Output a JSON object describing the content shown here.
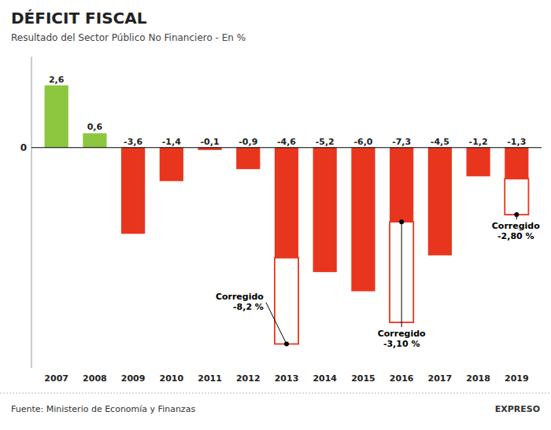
{
  "chart_data": {
    "type": "bar",
    "title": "DÉFICIT FISCAL",
    "subtitle": "Resultado del Sector Público No Financiero - En %",
    "categories": [
      "2007",
      "2008",
      "2009",
      "2010",
      "2011",
      "2012",
      "2013",
      "2014",
      "2015",
      "2016",
      "2017",
      "2018",
      "2019"
    ],
    "values": [
      2.6,
      0.6,
      -3.6,
      -1.4,
      -0.1,
      -0.9,
      -4.6,
      -5.2,
      -6.0,
      -7.3,
      -4.5,
      -1.2,
      -1.3
    ],
    "value_labels": [
      "2,6",
      "0,6",
      "-3,6",
      "-1,4",
      "-0,1",
      "-0,9",
      "-4,6",
      "-5,2",
      "-6,0",
      "-7,3",
      "-4,5",
      "-1,2",
      "-1,3"
    ],
    "data_labels": true,
    "colors": [
      "#8dc63f",
      "#8dc63f",
      "#e8361e",
      "#e8361e",
      "#e8361e",
      "#e8361e",
      "#e8361e",
      "#e8361e",
      "#e8361e",
      "#e8361e",
      "#e8361e",
      "#e8361e",
      "#e8361e"
    ],
    "ylim": [
      -9.2,
      3.8
    ],
    "yticks": [
      0
    ],
    "annotations": [
      {
        "category": "2013",
        "value": -8.2,
        "label": "Corregido\n-8,2 %"
      },
      {
        "category": "2016",
        "value": -3.1,
        "label": "Corregido\n-3,10 %"
      },
      {
        "category": "2019",
        "value": -2.8,
        "label": "Corregido\n-2,80 %"
      }
    ],
    "source": "Fuente: Ministerio de Economía y Finanzas",
    "credit": "EXPRESO"
  }
}
